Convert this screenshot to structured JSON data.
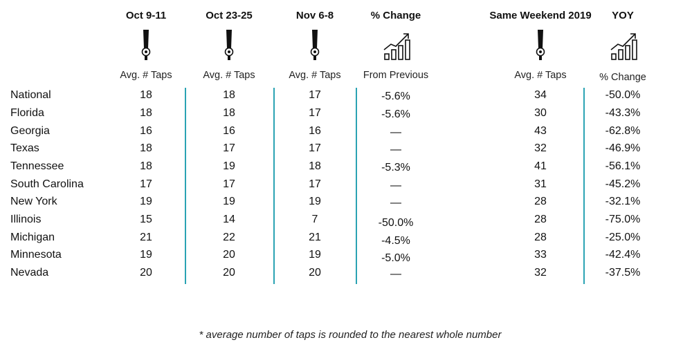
{
  "columns": [
    {
      "title": "Oct 9-11",
      "subtitle": "Avg. # Taps",
      "icon": "beer-tap-icon"
    },
    {
      "title": "Oct 23-25",
      "subtitle": "Avg. # Taps",
      "icon": "beer-tap-icon"
    },
    {
      "title": "Nov 6-8",
      "subtitle": "Avg. # Taps",
      "icon": "beer-tap-icon"
    },
    {
      "title": "% Change",
      "subtitle": "From Previous",
      "icon": "growth-chart-icon"
    },
    {
      "title": "Same Weekend 2019",
      "subtitle": "Avg. # Taps",
      "icon": "beer-tap-icon"
    },
    {
      "title": "YOY",
      "subtitle": "% Change",
      "icon": "growth-chart-icon"
    }
  ],
  "rows": [
    {
      "label": "National",
      "values": [
        "18",
        "18",
        "17",
        "-5.6%",
        "34",
        "-50.0%"
      ]
    },
    {
      "label": "Florida",
      "values": [
        "18",
        "18",
        "17",
        "-5.6%",
        "30",
        "-43.3%"
      ]
    },
    {
      "label": "Georgia",
      "values": [
        "16",
        "16",
        "16",
        "—",
        "43",
        "-62.8%"
      ]
    },
    {
      "label": "Texas",
      "values": [
        "18",
        "17",
        "17",
        "—",
        "32",
        "-46.9%"
      ]
    },
    {
      "label": "Tennessee",
      "values": [
        "18",
        "19",
        "18",
        "-5.3%",
        "41",
        "-56.1%"
      ]
    },
    {
      "label": "South Carolina",
      "values": [
        "17",
        "17",
        "17",
        "—",
        "31",
        "-45.2%"
      ]
    },
    {
      "label": "New York",
      "values": [
        "19",
        "19",
        "19",
        "—",
        "28",
        "-32.1%"
      ]
    },
    {
      "label": "Illinois",
      "values": [
        "15",
        "14",
        "7",
        "-50.0%",
        "28",
        "-75.0%"
      ]
    },
    {
      "label": "Michigan",
      "values": [
        "21",
        "22",
        "21",
        "-4.5%",
        "28",
        "-25.0%"
      ]
    },
    {
      "label": "Minnesota",
      "values": [
        "19",
        "20",
        "19",
        "-5.0%",
        "33",
        "-42.4%"
      ]
    },
    {
      "label": "Nevada",
      "values": [
        "20",
        "20",
        "20",
        "—",
        "32",
        "-37.5%"
      ]
    }
  ],
  "footnote": "*  average number of taps is rounded to the nearest whole number",
  "colors": {
    "divider": "#2aa3b3",
    "text": "#111111"
  }
}
